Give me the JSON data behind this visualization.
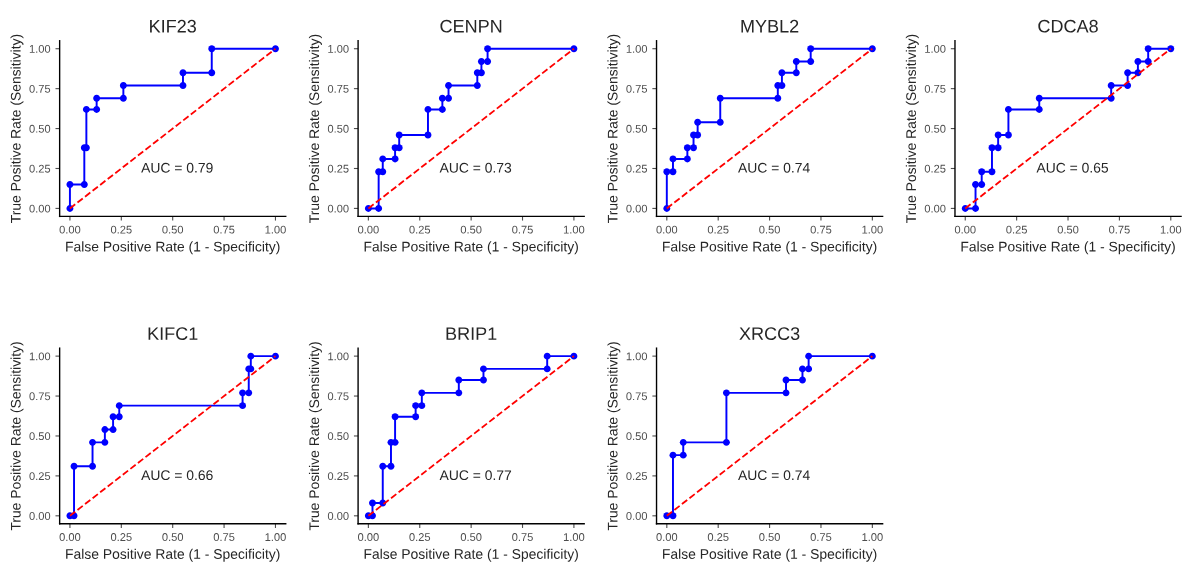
{
  "chart_data": [
    {
      "type": "line",
      "title": "KIF23",
      "xlabel": "False Positive Rate (1 - Specificity)",
      "ylabel": "True Positive Rate (Sensitivity)",
      "annotations": [
        "AUC = 0.79"
      ],
      "xlim": [
        -0.05,
        1.05
      ],
      "ylim": [
        -0.05,
        1.05
      ],
      "xticks": [
        {
          "value": 0,
          "label": "0.00"
        },
        {
          "value": 0.25,
          "label": "0.25"
        },
        {
          "value": 0.5,
          "label": "0.50"
        },
        {
          "value": 0.75,
          "label": "0.75"
        },
        {
          "value": 1,
          "label": "1.00"
        }
      ],
      "yticks": [
        {
          "value": 0,
          "label": "0.00"
        },
        {
          "value": 0.25,
          "label": "0.25"
        },
        {
          "value": 0.5,
          "label": "0.50"
        },
        {
          "value": 0.75,
          "label": "0.75"
        },
        {
          "value": 1,
          "label": "1.00"
        }
      ],
      "grid": false,
      "series": [
        {
          "color": "#0000ff",
          "marker": "circle",
          "line_style": "solid",
          "x": [
            0,
            0,
            0.07,
            0.07,
            0.08,
            0.08,
            0.13,
            0.13,
            0.26,
            0.26,
            0.55,
            0.55,
            0.69,
            0.69,
            1
          ],
          "values": [
            0,
            0.15,
            0.15,
            0.38,
            0.38,
            0.62,
            0.62,
            0.69,
            0.69,
            0.77,
            0.77,
            0.85,
            0.85,
            1,
            1
          ]
        },
        {
          "color": "#ff0000",
          "marker": "none",
          "line_style": "dashed",
          "x": [
            0,
            1
          ],
          "values": [
            0,
            1
          ]
        }
      ]
    },
    {
      "type": "line",
      "title": "CENPN",
      "xlabel": "False Positive Rate (1 - Specificity)",
      "ylabel": "True Positive Rate (Sensitivity)",
      "annotations": [
        "AUC = 0.73"
      ],
      "xlim": [
        -0.05,
        1.05
      ],
      "ylim": [
        -0.05,
        1.05
      ],
      "xticks": [
        {
          "value": 0,
          "label": "0.00"
        },
        {
          "value": 0.25,
          "label": "0.25"
        },
        {
          "value": 0.5,
          "label": "0.50"
        },
        {
          "value": 0.75,
          "label": "0.75"
        },
        {
          "value": 1,
          "label": "1.00"
        }
      ],
      "yticks": [
        {
          "value": 0,
          "label": "0.00"
        },
        {
          "value": 0.25,
          "label": "0.25"
        },
        {
          "value": 0.5,
          "label": "0.50"
        },
        {
          "value": 0.75,
          "label": "0.75"
        },
        {
          "value": 1,
          "label": "1.00"
        }
      ],
      "grid": false,
      "series": [
        {
          "color": "#0000ff",
          "marker": "circle",
          "line_style": "solid",
          "x": [
            0,
            0.05,
            0.05,
            0.07,
            0.07,
            0.13,
            0.13,
            0.15,
            0.15,
            0.29,
            0.29,
            0.36,
            0.36,
            0.39,
            0.39,
            0.53,
            0.53,
            0.55,
            0.55,
            0.58,
            0.58,
            1
          ],
          "values": [
            0,
            0,
            0.23,
            0.23,
            0.31,
            0.31,
            0.38,
            0.38,
            0.46,
            0.46,
            0.62,
            0.62,
            0.69,
            0.69,
            0.77,
            0.77,
            0.85,
            0.85,
            0.92,
            0.92,
            1,
            1
          ]
        },
        {
          "color": "#ff0000",
          "marker": "none",
          "line_style": "dashed",
          "x": [
            0,
            1
          ],
          "values": [
            0,
            1
          ]
        }
      ]
    },
    {
      "type": "line",
      "title": "MYBL2",
      "xlabel": "False Positive Rate (1 - Specificity)",
      "ylabel": "True Positive Rate (Sensitivity)",
      "annotations": [
        "AUC = 0.74"
      ],
      "xlim": [
        -0.05,
        1.05
      ],
      "ylim": [
        -0.05,
        1.05
      ],
      "xticks": [
        {
          "value": 0,
          "label": "0.00"
        },
        {
          "value": 0.25,
          "label": "0.25"
        },
        {
          "value": 0.5,
          "label": "0.50"
        },
        {
          "value": 0.75,
          "label": "0.75"
        },
        {
          "value": 1,
          "label": "1.00"
        }
      ],
      "yticks": [
        {
          "value": 0,
          "label": "0.00"
        },
        {
          "value": 0.25,
          "label": "0.25"
        },
        {
          "value": 0.5,
          "label": "0.50"
        },
        {
          "value": 0.75,
          "label": "0.75"
        },
        {
          "value": 1,
          "label": "1.00"
        }
      ],
      "grid": false,
      "series": [
        {
          "color": "#0000ff",
          "marker": "circle",
          "line_style": "solid",
          "x": [
            0,
            0,
            0.03,
            0.03,
            0.1,
            0.1,
            0.13,
            0.13,
            0.15,
            0.15,
            0.26,
            0.26,
            0.54,
            0.54,
            0.56,
            0.56,
            0.63,
            0.63,
            0.7,
            0.7,
            1
          ],
          "values": [
            0,
            0.23,
            0.23,
            0.31,
            0.31,
            0.38,
            0.38,
            0.46,
            0.46,
            0.54,
            0.54,
            0.69,
            0.69,
            0.77,
            0.77,
            0.85,
            0.85,
            0.92,
            0.92,
            1,
            1
          ]
        },
        {
          "color": "#ff0000",
          "marker": "none",
          "line_style": "dashed",
          "x": [
            0,
            1
          ],
          "values": [
            0,
            1
          ]
        }
      ]
    },
    {
      "type": "line",
      "title": "CDCA8",
      "xlabel": "False Positive Rate (1 - Specificity)",
      "ylabel": "True Positive Rate (Sensitivity)",
      "annotations": [
        "AUC = 0.65"
      ],
      "xlim": [
        -0.05,
        1.05
      ],
      "ylim": [
        -0.05,
        1.05
      ],
      "xticks": [
        {
          "value": 0,
          "label": "0.00"
        },
        {
          "value": 0.25,
          "label": "0.25"
        },
        {
          "value": 0.5,
          "label": "0.50"
        },
        {
          "value": 0.75,
          "label": "0.75"
        },
        {
          "value": 1,
          "label": "1.00"
        }
      ],
      "yticks": [
        {
          "value": 0,
          "label": "0.00"
        },
        {
          "value": 0.25,
          "label": "0.25"
        },
        {
          "value": 0.5,
          "label": "0.50"
        },
        {
          "value": 0.75,
          "label": "0.75"
        },
        {
          "value": 1,
          "label": "1.00"
        }
      ],
      "grid": false,
      "series": [
        {
          "color": "#0000ff",
          "marker": "circle",
          "line_style": "solid",
          "x": [
            0,
            0.05,
            0.05,
            0.08,
            0.08,
            0.13,
            0.13,
            0.16,
            0.16,
            0.21,
            0.21,
            0.36,
            0.36,
            0.71,
            0.71,
            0.79,
            0.79,
            0.84,
            0.84,
            0.89,
            0.89,
            1
          ],
          "values": [
            0,
            0,
            0.15,
            0.15,
            0.23,
            0.23,
            0.38,
            0.38,
            0.46,
            0.46,
            0.62,
            0.62,
            0.69,
            0.69,
            0.77,
            0.77,
            0.85,
            0.85,
            0.92,
            0.92,
            1,
            1
          ]
        },
        {
          "color": "#ff0000",
          "marker": "none",
          "line_style": "dashed",
          "x": [
            0,
            1
          ],
          "values": [
            0,
            1
          ]
        }
      ]
    },
    {
      "type": "line",
      "title": "KIFC1",
      "xlabel": "False Positive Rate (1 - Specificity)",
      "ylabel": "True Positive Rate (Sensitivity)",
      "annotations": [
        "AUC = 0.66"
      ],
      "xlim": [
        -0.05,
        1.05
      ],
      "ylim": [
        -0.05,
        1.05
      ],
      "xticks": [
        {
          "value": 0,
          "label": "0.00"
        },
        {
          "value": 0.25,
          "label": "0.25"
        },
        {
          "value": 0.5,
          "label": "0.50"
        },
        {
          "value": 0.75,
          "label": "0.75"
        },
        {
          "value": 1,
          "label": "1.00"
        }
      ],
      "yticks": [
        {
          "value": 0,
          "label": "0.00"
        },
        {
          "value": 0.25,
          "label": "0.25"
        },
        {
          "value": 0.5,
          "label": "0.50"
        },
        {
          "value": 0.75,
          "label": "0.75"
        },
        {
          "value": 1,
          "label": "1.00"
        }
      ],
      "grid": false,
      "series": [
        {
          "color": "#0000ff",
          "marker": "circle",
          "line_style": "solid",
          "x": [
            0,
            0.02,
            0.02,
            0.11,
            0.11,
            0.17,
            0.17,
            0.21,
            0.21,
            0.24,
            0.24,
            0.84,
            0.84,
            0.87,
            0.87,
            0.88,
            0.88,
            1
          ],
          "values": [
            0,
            0,
            0.31,
            0.31,
            0.46,
            0.46,
            0.54,
            0.54,
            0.62,
            0.62,
            0.69,
            0.69,
            0.77,
            0.77,
            0.92,
            0.92,
            1,
            1
          ]
        },
        {
          "color": "#ff0000",
          "marker": "none",
          "line_style": "dashed",
          "x": [
            0,
            1
          ],
          "values": [
            0,
            1
          ]
        }
      ]
    },
    {
      "type": "line",
      "title": "BRIP1",
      "xlabel": "False Positive Rate (1 - Specificity)",
      "ylabel": "True Positive Rate (Sensitivity)",
      "annotations": [
        "AUC = 0.77"
      ],
      "xlim": [
        -0.05,
        1.05
      ],
      "ylim": [
        -0.05,
        1.05
      ],
      "xticks": [
        {
          "value": 0,
          "label": "0.00"
        },
        {
          "value": 0.25,
          "label": "0.25"
        },
        {
          "value": 0.5,
          "label": "0.50"
        },
        {
          "value": 0.75,
          "label": "0.75"
        },
        {
          "value": 1,
          "label": "1.00"
        }
      ],
      "yticks": [
        {
          "value": 0,
          "label": "0.00"
        },
        {
          "value": 0.25,
          "label": "0.25"
        },
        {
          "value": 0.5,
          "label": "0.50"
        },
        {
          "value": 0.75,
          "label": "0.75"
        },
        {
          "value": 1,
          "label": "1.00"
        }
      ],
      "grid": false,
      "series": [
        {
          "color": "#0000ff",
          "marker": "circle",
          "line_style": "solid",
          "x": [
            0,
            0.02,
            0.02,
            0.07,
            0.07,
            0.11,
            0.11,
            0.13,
            0.13,
            0.23,
            0.23,
            0.26,
            0.26,
            0.44,
            0.44,
            0.56,
            0.56,
            0.87,
            0.87,
            1
          ],
          "values": [
            0,
            0,
            0.08,
            0.08,
            0.31,
            0.31,
            0.46,
            0.46,
            0.62,
            0.62,
            0.69,
            0.69,
            0.77,
            0.77,
            0.85,
            0.85,
            0.92,
            0.92,
            1,
            1
          ]
        },
        {
          "color": "#ff0000",
          "marker": "none",
          "line_style": "dashed",
          "x": [
            0,
            1
          ],
          "values": [
            0,
            1
          ]
        }
      ]
    },
    {
      "type": "line",
      "title": "XRCC3",
      "xlabel": "False Positive Rate (1 - Specificity)",
      "ylabel": "True Positive Rate (Sensitivity)",
      "annotations": [
        "AUC = 0.74"
      ],
      "xlim": [
        -0.05,
        1.05
      ],
      "ylim": [
        -0.05,
        1.05
      ],
      "xticks": [
        {
          "value": 0,
          "label": "0.00"
        },
        {
          "value": 0.25,
          "label": "0.25"
        },
        {
          "value": 0.5,
          "label": "0.50"
        },
        {
          "value": 0.75,
          "label": "0.75"
        },
        {
          "value": 1,
          "label": "1.00"
        }
      ],
      "yticks": [
        {
          "value": 0,
          "label": "0.00"
        },
        {
          "value": 0.25,
          "label": "0.25"
        },
        {
          "value": 0.5,
          "label": "0.50"
        },
        {
          "value": 0.75,
          "label": "0.75"
        },
        {
          "value": 1,
          "label": "1.00"
        }
      ],
      "grid": false,
      "series": [
        {
          "color": "#0000ff",
          "marker": "circle",
          "line_style": "solid",
          "x": [
            0,
            0.03,
            0.03,
            0.08,
            0.08,
            0.29,
            0.29,
            0.58,
            0.58,
            0.66,
            0.66,
            0.69,
            0.69,
            1
          ],
          "values": [
            0,
            0,
            0.38,
            0.38,
            0.46,
            0.46,
            0.77,
            0.77,
            0.85,
            0.85,
            0.92,
            0.92,
            1,
            1
          ]
        },
        {
          "color": "#ff0000",
          "marker": "none",
          "line_style": "dashed",
          "x": [
            0,
            1
          ],
          "values": [
            0,
            1
          ]
        }
      ]
    }
  ]
}
